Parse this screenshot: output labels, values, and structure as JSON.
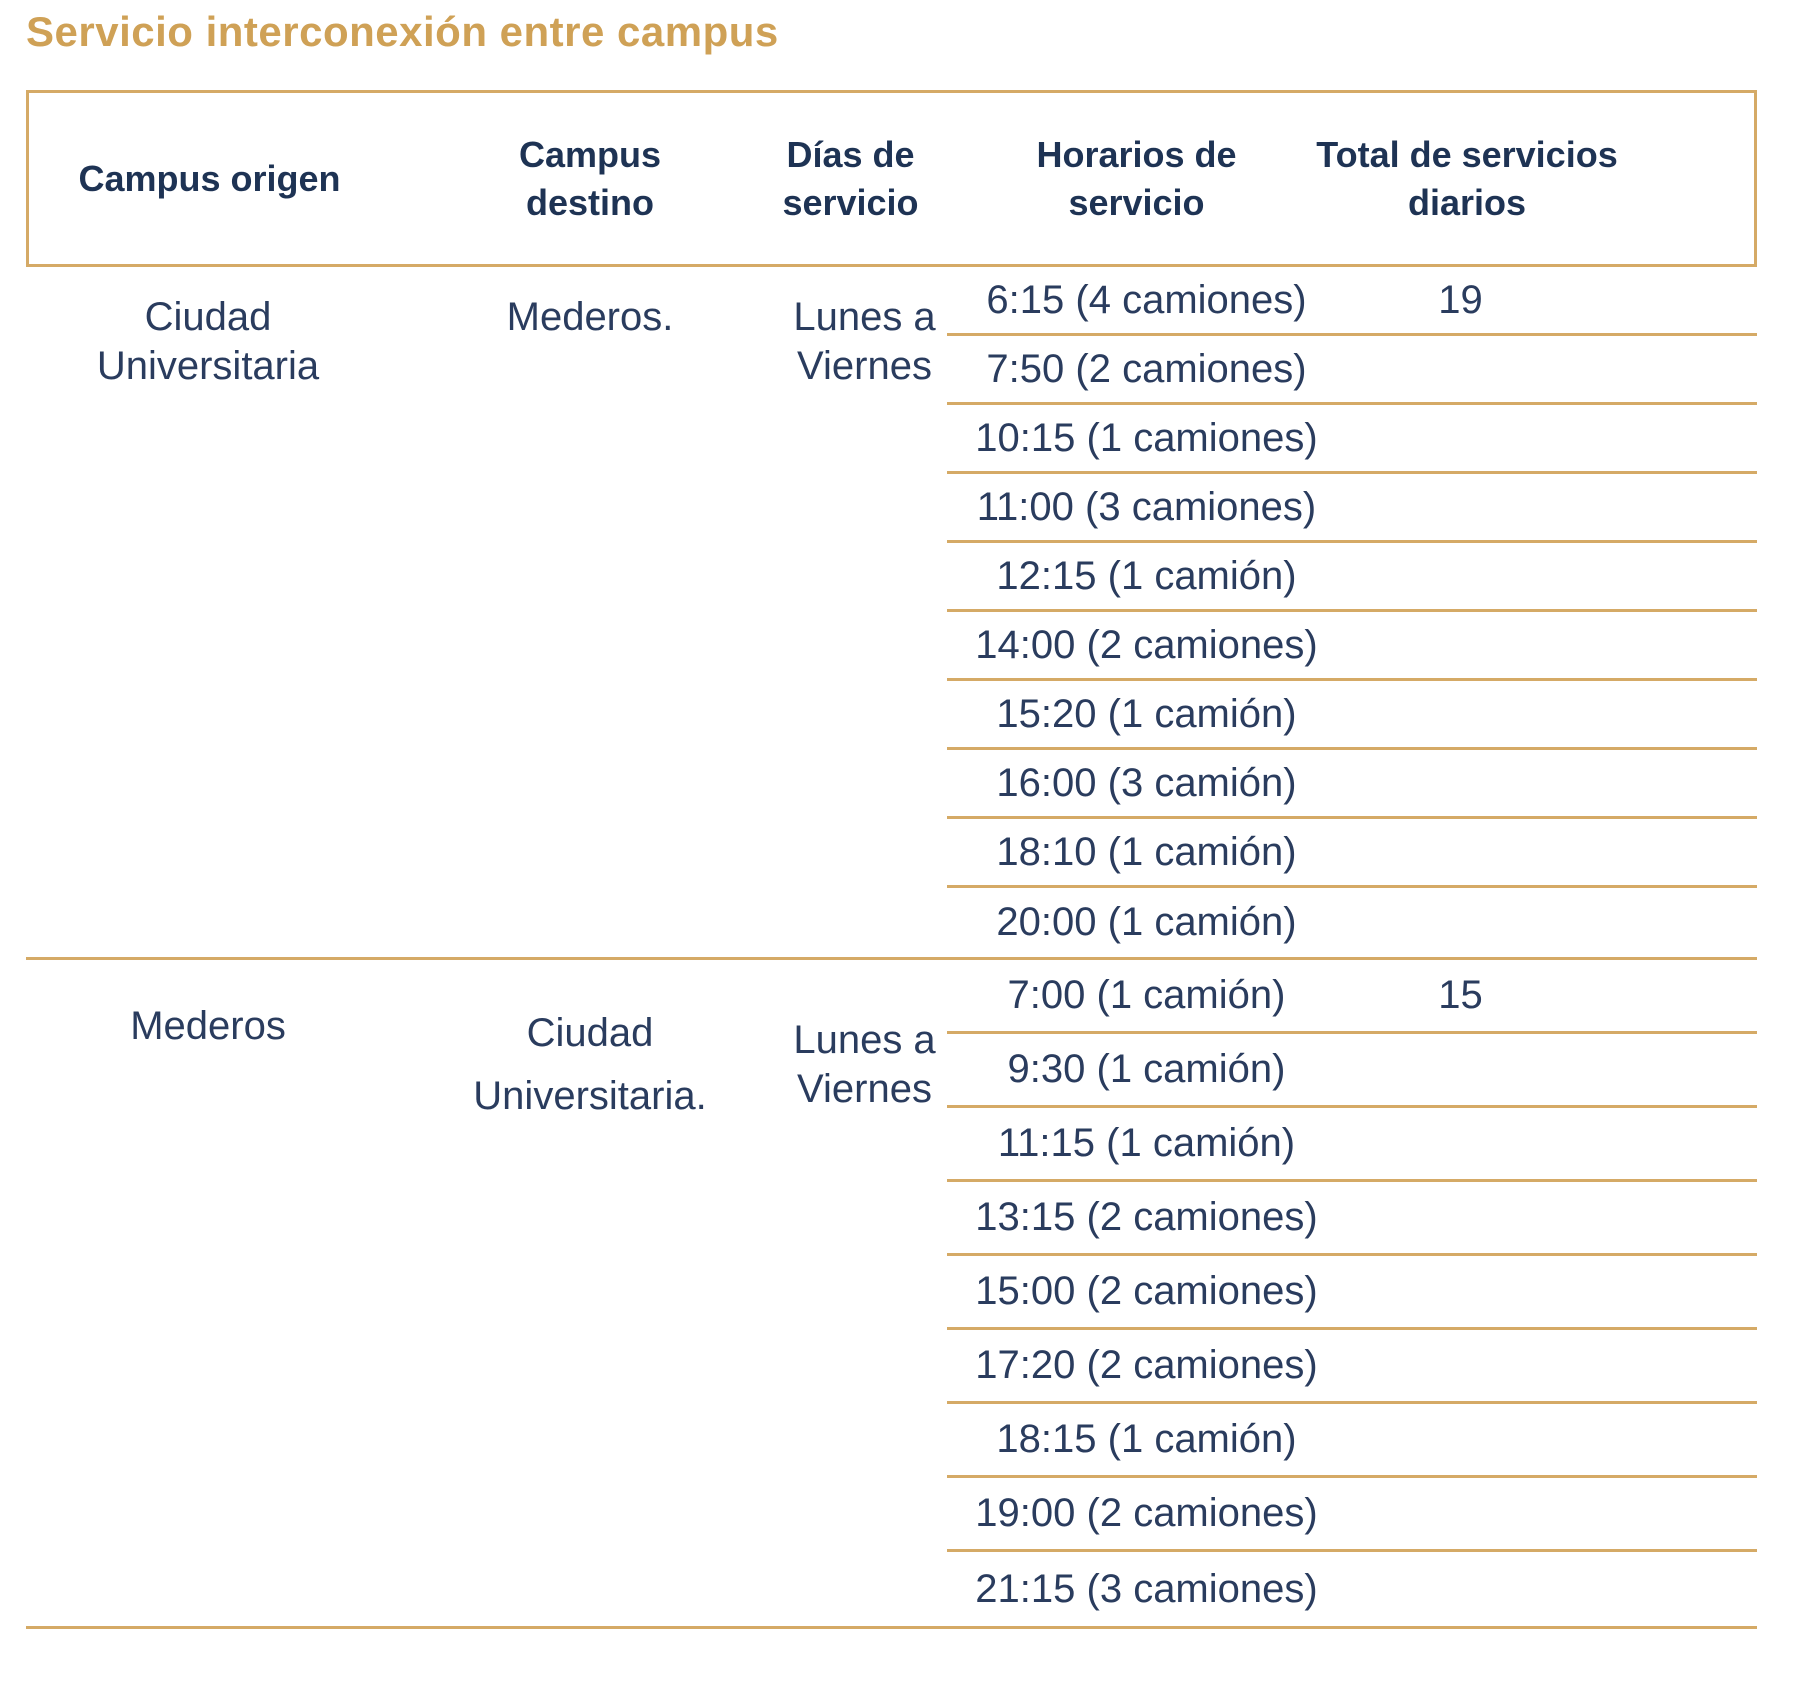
{
  "title": "Servicio interconexión entre campus",
  "colors": {
    "title_gold": "#cfa156",
    "line_gold": "#d5aa66",
    "header_navy": "#1e3354",
    "body_navy": "#2a3c5e"
  },
  "table": {
    "headers": [
      "Campus origen",
      "Campus destino",
      "Días de servicio",
      "Horarios de servicio",
      "Total de servicios diarios"
    ],
    "groups": [
      {
        "origin": "Ciudad Universitaria",
        "destination": "Mederos.",
        "days": "Lunes a Viernes",
        "total_daily_services": "19",
        "schedule": [
          "6:15 (4 camiones)",
          "7:50 (2 camiones)",
          "10:15 (1 camiones)",
          "11:00 (3 camiones)",
          "12:15 (1 camión)",
          "14:00 (2 camiones)",
          "15:20 (1 camión)",
          "16:00 (3 camión)",
          "18:10 (1 camión)",
          "20:00 (1 camión)"
        ]
      },
      {
        "origin": "Mederos",
        "destination": "Ciudad Universitaria.",
        "days": "Lunes a Viernes",
        "total_daily_services": "15",
        "schedule": [
          "7:00 (1 camión)",
          "9:30 (1 camión)",
          "11:15 (1 camión)",
          "13:15 (2 camiones)",
          "15:00 (2 camiones)",
          "17:20 (2 camiones)",
          "18:15 (1 camión)",
          "19:00 (2 camiones)",
          "21:15 (3 camiones)"
        ]
      }
    ]
  }
}
